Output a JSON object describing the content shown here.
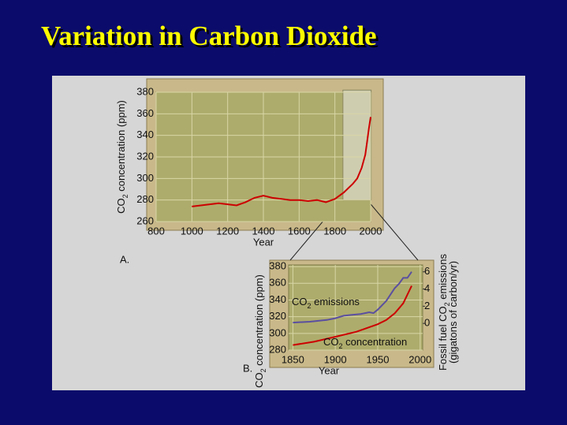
{
  "title": "Variation in Carbon Dioxide",
  "chart_data": [
    {
      "type": "line",
      "panel_label": "A.",
      "xlabel": "Year",
      "ylabel": "CO2 concentration (ppm)",
      "xlim": [
        800,
        2000
      ],
      "ylim": [
        260,
        380
      ],
      "xticks": [
        800,
        1000,
        1200,
        1400,
        1600,
        1800,
        2000
      ],
      "yticks": [
        260,
        280,
        300,
        320,
        340,
        360,
        380
      ],
      "grid": true,
      "series": [
        {
          "color": "#cc0000",
          "x": [
            1000,
            1050,
            1100,
            1150,
            1200,
            1250,
            1300,
            1350,
            1400,
            1450,
            1500,
            1550,
            1600,
            1650,
            1700,
            1750,
            1800,
            1850,
            1900,
            1925,
            1950,
            1970,
            1980,
            1990,
            2000
          ],
          "values": [
            274,
            275,
            276,
            277,
            276,
            275,
            278,
            282,
            284,
            282,
            281,
            280,
            280,
            279,
            280,
            278,
            281,
            287,
            295,
            300,
            310,
            322,
            334,
            346,
            357
          ]
        }
      ]
    },
    {
      "type": "line",
      "panel_label": "B.",
      "xlabel": "Year",
      "ylabel": "CO2 concentration (ppm)",
      "y2label": [
        "Fossil fuel CO2 emissions",
        "(gigatons of carbon/yr)"
      ],
      "xlim": [
        1845,
        2003
      ],
      "ylim": [
        280,
        382
      ],
      "y2lim": [
        -3.1,
        6.8
      ],
      "xticks": [
        1850,
        1900,
        1950,
        2000
      ],
      "yticks": [
        280,
        300,
        320,
        340,
        360,
        380
      ],
      "y2ticks": [
        0,
        2,
        4,
        6
      ],
      "grid": true,
      "series": [
        {
          "name": "CO2 emissions",
          "color": "#5a4fa0",
          "axis": "y2",
          "x": [
            1850,
            1870,
            1890,
            1900,
            1910,
            1920,
            1930,
            1940,
            1945,
            1950,
            1960,
            1970,
            1975,
            1980,
            1985,
            1990
          ],
          "values": [
            0.1,
            0.2,
            0.4,
            0.6,
            0.9,
            1.0,
            1.1,
            1.3,
            1.2,
            1.6,
            2.6,
            4.1,
            4.6,
            5.3,
            5.3,
            6.0
          ]
        },
        {
          "name": "CO2 concentration",
          "color": "#cc0000",
          "x": [
            1850,
            1875,
            1900,
            1925,
            1950,
            1960,
            1970,
            1980,
            1990
          ],
          "values": [
            286,
            290,
            296,
            302,
            311,
            316,
            324,
            336,
            357
          ]
        }
      ]
    }
  ]
}
